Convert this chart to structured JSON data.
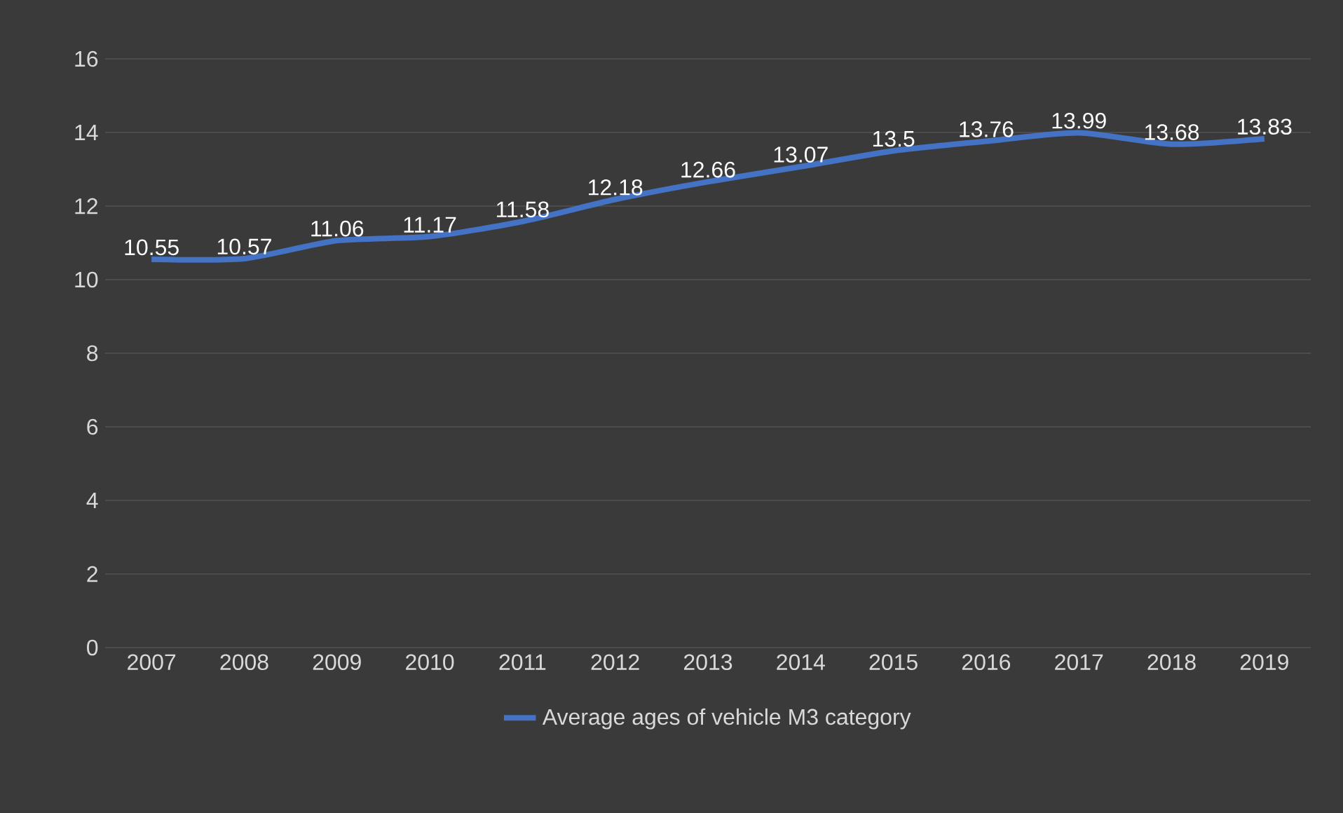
{
  "chart_data": {
    "type": "line",
    "categories": [
      "2007",
      "2008",
      "2009",
      "2010",
      "2011",
      "2012",
      "2013",
      "2014",
      "2015",
      "2016",
      "2017",
      "2018",
      "2019"
    ],
    "series": [
      {
        "name": "Average ages of vehicle M3 category",
        "color": "#4472c4",
        "values": [
          10.55,
          10.57,
          11.06,
          11.17,
          11.58,
          12.18,
          12.66,
          13.07,
          13.5,
          13.76,
          13.99,
          13.68,
          13.83
        ]
      }
    ],
    "ylim": [
      0,
      16
    ],
    "yticks": [
      0,
      2,
      4,
      6,
      8,
      10,
      12,
      14,
      16
    ],
    "grid": "y",
    "legend": "bottom",
    "data_labels": true,
    "marker": "none",
    "line_style": "solid"
  }
}
